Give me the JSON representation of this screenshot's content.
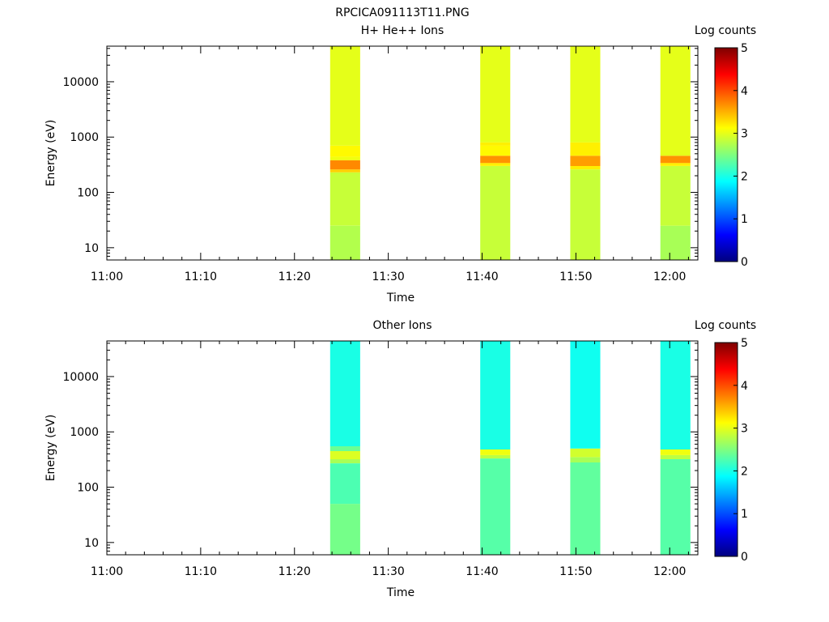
{
  "page_title": "RPCICA091113T11.PNG",
  "colormap": [
    "#00007f",
    "#0000ff",
    "#007fff",
    "#00ffff",
    "#7fff7f",
    "#ffff00",
    "#ff7f00",
    "#ff0000",
    "#7f0000"
  ],
  "chart_data": [
    {
      "type": "heatmap",
      "title": "H+ He++ Ions",
      "xlabel": "Time",
      "ylabel": "Energy (eV)",
      "x_ticks": [
        "11:00",
        "11:10",
        "11:20",
        "11:30",
        "11:40",
        "11:50",
        "12:00"
      ],
      "x_range_minutes": [
        0,
        63
      ],
      "y_scale": "log",
      "y_ticks": [
        "10",
        "100",
        "1000",
        "10000"
      ],
      "y_range": [
        6,
        44000
      ],
      "colorbar": {
        "label": "Log counts",
        "ticks": [
          "0",
          "1",
          "2",
          "3",
          "4",
          "5"
        ],
        "range": [
          0,
          5
        ]
      },
      "bursts": [
        {
          "t_start": 23.8,
          "t_end": 27.0,
          "bins": [
            {
              "e_min": 6,
              "e_max": 25,
              "log_counts": 2.75
            },
            {
              "e_min": 25,
              "e_max": 230,
              "log_counts": 2.85
            },
            {
              "e_min": 230,
              "e_max": 260,
              "log_counts": 3.35
            },
            {
              "e_min": 260,
              "e_max": 380,
              "log_counts": 3.7
            },
            {
              "e_min": 380,
              "e_max": 440,
              "log_counts": 3.05
            },
            {
              "e_min": 440,
              "e_max": 700,
              "log_counts": 3.15
            },
            {
              "e_min": 700,
              "e_max": 44000,
              "log_counts": 3.0
            }
          ]
        },
        {
          "t_start": 39.8,
          "t_end": 43.0,
          "bins": [
            {
              "e_min": 6,
              "e_max": 300,
              "log_counts": 2.85
            },
            {
              "e_min": 300,
              "e_max": 340,
              "log_counts": 3.2
            },
            {
              "e_min": 340,
              "e_max": 460,
              "log_counts": 3.65
            },
            {
              "e_min": 460,
              "e_max": 700,
              "log_counts": 3.15
            },
            {
              "e_min": 700,
              "e_max": 800,
              "log_counts": 3.2
            },
            {
              "e_min": 800,
              "e_max": 44000,
              "log_counts": 3.0
            }
          ]
        },
        {
          "t_start": 49.4,
          "t_end": 52.6,
          "bins": [
            {
              "e_min": 6,
              "e_max": 260,
              "log_counts": 2.85
            },
            {
              "e_min": 260,
              "e_max": 300,
              "log_counts": 3.2
            },
            {
              "e_min": 300,
              "e_max": 460,
              "log_counts": 3.6
            },
            {
              "e_min": 460,
              "e_max": 800,
              "log_counts": 3.2
            },
            {
              "e_min": 800,
              "e_max": 44000,
              "log_counts": 3.0
            }
          ]
        },
        {
          "t_start": 59.0,
          "t_end": 62.2,
          "bins": [
            {
              "e_min": 6,
              "e_max": 25,
              "log_counts": 2.7
            },
            {
              "e_min": 25,
              "e_max": 300,
              "log_counts": 2.85
            },
            {
              "e_min": 300,
              "e_max": 340,
              "log_counts": 3.2
            },
            {
              "e_min": 340,
              "e_max": 460,
              "log_counts": 3.65
            },
            {
              "e_min": 460,
              "e_max": 44000,
              "log_counts": 3.0
            }
          ]
        }
      ]
    },
    {
      "type": "heatmap",
      "title": "Other Ions",
      "xlabel": "Time",
      "ylabel": "Energy (eV)",
      "x_ticks": [
        "11:00",
        "11:10",
        "11:20",
        "11:30",
        "11:40",
        "11:50",
        "12:00"
      ],
      "x_range_minutes": [
        0,
        63
      ],
      "y_scale": "log",
      "y_ticks": [
        "10",
        "100",
        "1000",
        "10000"
      ],
      "y_range": [
        6,
        44000
      ],
      "colorbar": {
        "label": "Log counts",
        "ticks": [
          "0",
          "1",
          "2",
          "3",
          "4",
          "5"
        ],
        "range": [
          0,
          5
        ]
      },
      "bursts": [
        {
          "t_start": 23.8,
          "t_end": 27.0,
          "bins": [
            {
              "e_min": 6,
              "e_max": 50,
              "log_counts": 2.45
            },
            {
              "e_min": 50,
              "e_max": 270,
              "log_counts": 2.25
            },
            {
              "e_min": 270,
              "e_max": 320,
              "log_counts": 2.7
            },
            {
              "e_min": 320,
              "e_max": 450,
              "log_counts": 2.95
            },
            {
              "e_min": 450,
              "e_max": 550,
              "log_counts": 2.4
            },
            {
              "e_min": 550,
              "e_max": 44000,
              "log_counts": 2.0
            }
          ]
        },
        {
          "t_start": 39.8,
          "t_end": 43.0,
          "bins": [
            {
              "e_min": 6,
              "e_max": 330,
              "log_counts": 2.3
            },
            {
              "e_min": 330,
              "e_max": 380,
              "log_counts": 2.8
            },
            {
              "e_min": 380,
              "e_max": 480,
              "log_counts": 3.05
            },
            {
              "e_min": 480,
              "e_max": 44000,
              "log_counts": 2.0
            }
          ]
        },
        {
          "t_start": 49.4,
          "t_end": 52.6,
          "bins": [
            {
              "e_min": 6,
              "e_max": 280,
              "log_counts": 2.35
            },
            {
              "e_min": 280,
              "e_max": 350,
              "log_counts": 2.7
            },
            {
              "e_min": 350,
              "e_max": 500,
              "log_counts": 2.9
            },
            {
              "e_min": 500,
              "e_max": 44000,
              "log_counts": 1.95
            }
          ]
        },
        {
          "t_start": 59.0,
          "t_end": 62.2,
          "bins": [
            {
              "e_min": 6,
              "e_max": 320,
              "log_counts": 2.3
            },
            {
              "e_min": 320,
              "e_max": 380,
              "log_counts": 2.8
            },
            {
              "e_min": 380,
              "e_max": 480,
              "log_counts": 3.05
            },
            {
              "e_min": 480,
              "e_max": 44000,
              "log_counts": 2.0
            }
          ]
        }
      ]
    }
  ]
}
